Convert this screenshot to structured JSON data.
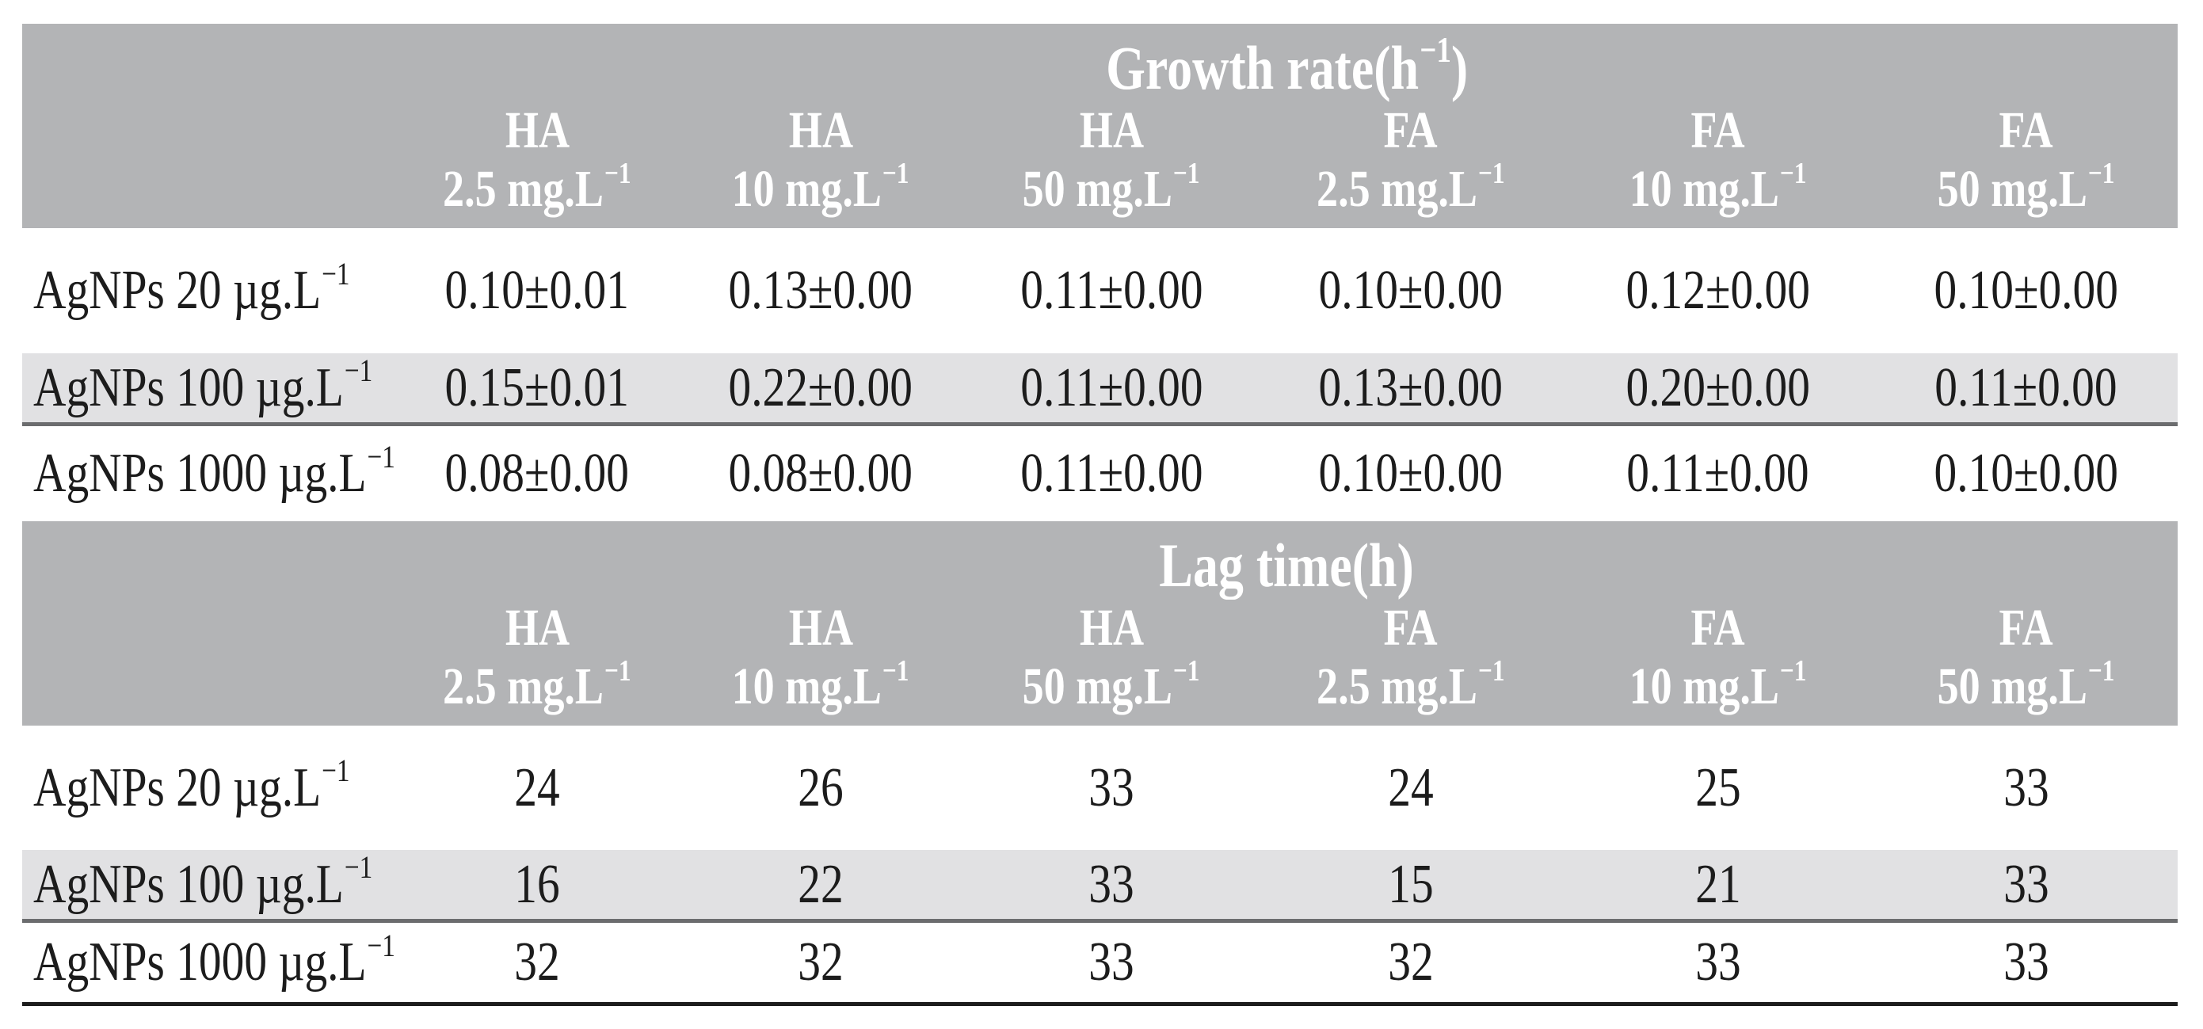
{
  "colors": {
    "header_bg": "#b3b4b6",
    "alt_row_bg": "#e1e1e3",
    "divider": "#6b6c6e",
    "bottom_border": "#1c1c1c",
    "header_text": "#ffffff",
    "body_text": "#1c1c1c"
  },
  "columns": [
    {
      "line1": "HA",
      "line2": "2.5 mg.L⁻¹"
    },
    {
      "line1": "HA",
      "line2": "10 mg.L⁻¹"
    },
    {
      "line1": "HA",
      "line2": "50 mg.L⁻¹"
    },
    {
      "line1": "FA",
      "line2": "2.5 mg.L⁻¹"
    },
    {
      "line1": "FA",
      "line2": "10 mg.L⁻¹"
    },
    {
      "line1": "FA",
      "line2": "50 mg.L⁻¹"
    }
  ],
  "growth_table": {
    "title": "Growth rate(h⁻¹)",
    "rows": [
      {
        "label": "AgNPs 20 µg.L⁻¹",
        "values": [
          "0.10±0.01",
          "0.13±0.00",
          "0.11±0.00",
          "0.10±0.00",
          "0.12±0.00",
          "0.10±0.00"
        ]
      },
      {
        "label": "AgNPs 100 µg.L⁻¹",
        "values": [
          "0.15±0.01",
          "0.22±0.00",
          "0.11±0.00",
          "0.13±0.00",
          "0.20±0.00",
          "0.11±0.00"
        ]
      },
      {
        "label": "AgNPs 1000 µg.L⁻¹",
        "values": [
          "0.08±0.00",
          "0.08±0.00",
          "0.11±0.00",
          "0.10±0.00",
          "0.11±0.00",
          "0.10±0.00"
        ]
      }
    ]
  },
  "lag_table": {
    "title": "Lag time(h)",
    "rows": [
      {
        "label": "AgNPs 20 µg.L⁻¹",
        "values": [
          "24",
          "26",
          "33",
          "24",
          "25",
          "33"
        ]
      },
      {
        "label": "AgNPs 100 µg.L⁻¹",
        "values": [
          "16",
          "22",
          "33",
          "15",
          "21",
          "33"
        ]
      },
      {
        "label": "AgNPs 1000 µg.L⁻¹",
        "values": [
          "32",
          "32",
          "33",
          "32",
          "33",
          "33"
        ]
      }
    ]
  }
}
